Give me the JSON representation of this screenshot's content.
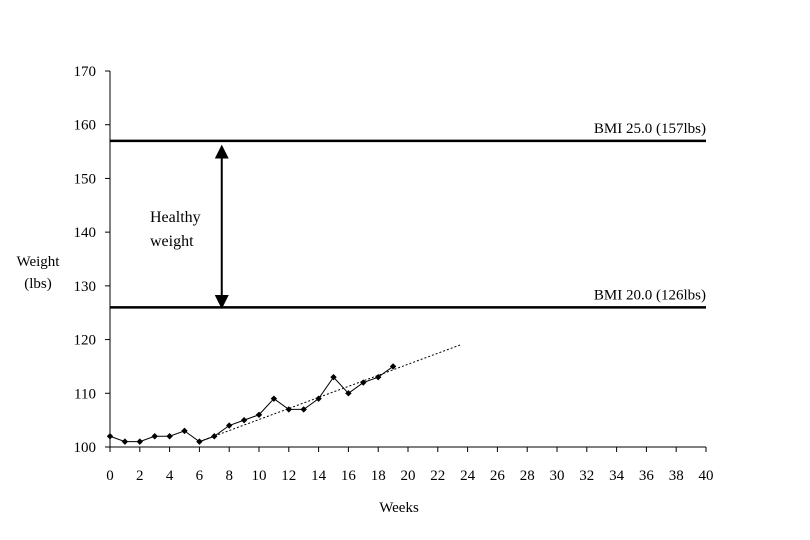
{
  "chart_data": {
    "type": "line",
    "xlabel": "Weeks",
    "ylabel": [
      "Weight",
      "(lbs)"
    ],
    "xlim": [
      0,
      40
    ],
    "ylim": [
      100,
      170
    ],
    "xticks": [
      0,
      2,
      4,
      6,
      8,
      10,
      12,
      14,
      16,
      18,
      20,
      22,
      24,
      26,
      28,
      30,
      32,
      34,
      36,
      38,
      40
    ],
    "yticks": [
      100,
      110,
      120,
      130,
      140,
      150,
      160,
      170
    ],
    "grid": false,
    "series": [
      {
        "x": [
          0,
          1,
          2,
          3,
          4,
          5,
          6,
          7,
          8,
          9,
          10,
          11,
          12,
          13,
          14,
          15,
          16,
          17,
          18,
          19
        ],
        "values": [
          102,
          101,
          101,
          102,
          102,
          103,
          101,
          102,
          104,
          105,
          106,
          109,
          107,
          107,
          109,
          113,
          110,
          112,
          113,
          115
        ],
        "marker": "diamond",
        "color": "#000000"
      }
    ],
    "trendline": {
      "x": [
        6,
        23.5
      ],
      "y": [
        101,
        119
      ],
      "style": "dotted"
    },
    "reference_lines": [
      {
        "y": 157,
        "label": "BMI 25.0 (157lbs)"
      },
      {
        "y": 126,
        "label": "BMI 20.0 (126lbs)"
      }
    ],
    "annotation": {
      "lines": [
        "Healthy",
        "weight"
      ],
      "arrow_x": 7.5,
      "arrow_from": 155,
      "arrow_to": 127
    }
  }
}
